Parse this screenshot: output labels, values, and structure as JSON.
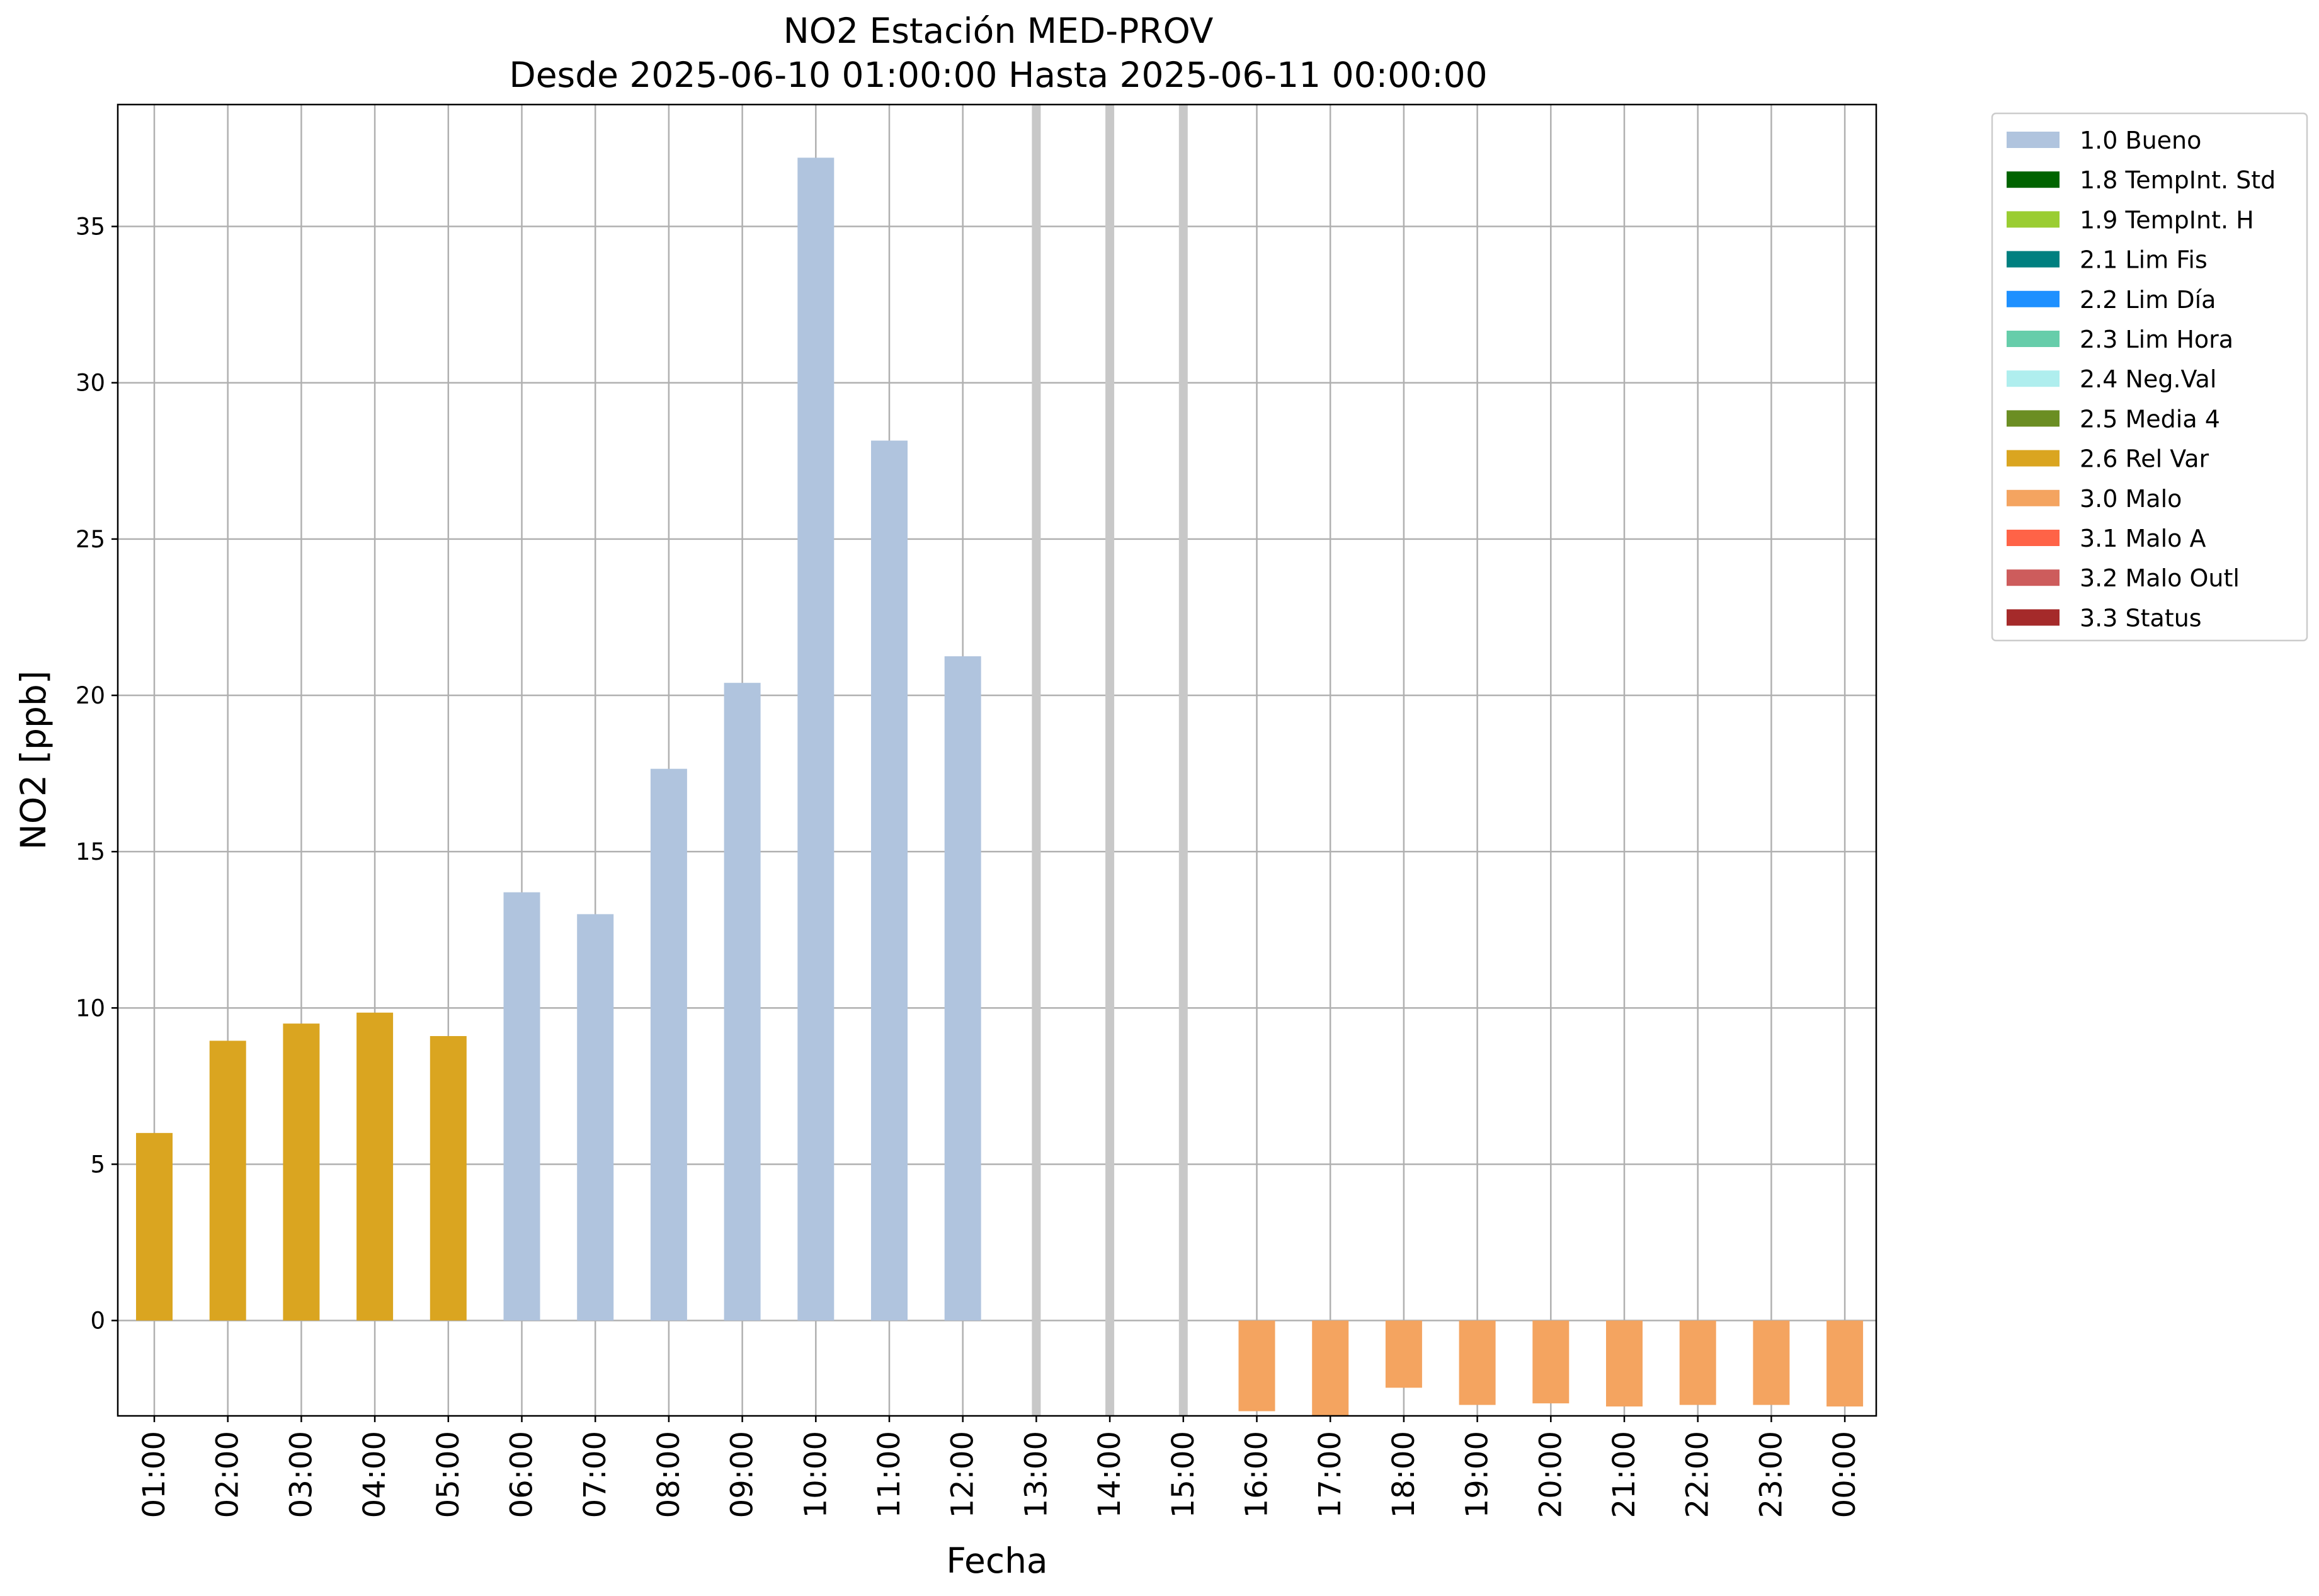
{
  "chart_data": {
    "type": "bar",
    "title": "NO2 Estación MED-PROV",
    "subtitle": "Desde 2025-06-10 01:00:00 Hasta 2025-06-11 00:00:00",
    "xlabel": "Fecha",
    "ylabel": "NO2 [ppb]",
    "ylim": [
      -3.05,
      38.9
    ],
    "yticks": [
      0,
      5,
      10,
      15,
      20,
      25,
      30,
      35
    ],
    "grid": true,
    "legend_position": "outside top-right",
    "categories": [
      "01:00",
      "02:00",
      "03:00",
      "04:00",
      "05:00",
      "06:00",
      "07:00",
      "08:00",
      "09:00",
      "10:00",
      "11:00",
      "12:00",
      "13:00",
      "14:00",
      "15:00",
      "16:00",
      "17:00",
      "18:00",
      "19:00",
      "20:00",
      "21:00",
      "22:00",
      "23:00",
      "00:00"
    ],
    "values": [
      6.0,
      8.95,
      9.5,
      9.85,
      9.1,
      13.7,
      13.0,
      17.65,
      20.4,
      37.2,
      28.15,
      21.25,
      null,
      null,
      null,
      -2.9,
      -3.05,
      -2.15,
      -2.7,
      -2.65,
      -2.75,
      -2.7,
      -2.7,
      -2.75
    ],
    "flags": [
      "2.6 Rel Var",
      "2.6 Rel Var",
      "2.6 Rel Var",
      "2.6 Rel Var",
      "2.6 Rel Var",
      "1.0 Bueno",
      "1.0 Bueno",
      "1.0 Bueno",
      "1.0 Bueno",
      "1.0 Bueno",
      "1.0 Bueno",
      "1.0 Bueno",
      null,
      null,
      null,
      "3.0 Malo",
      "3.0 Malo",
      "3.0 Malo",
      "3.0 Malo",
      "3.0 Malo",
      "3.0 Malo",
      "3.0 Malo",
      "3.0 Malo",
      "3.0 Malo"
    ],
    "missing_markers": [
      "13:00",
      "14:00",
      "15:00"
    ],
    "legend": [
      {
        "label": "1.0 Bueno",
        "color": "#b0c4de"
      },
      {
        "label": "1.8 TempInt. Std",
        "color": "#006400"
      },
      {
        "label": "1.9 TempInt. H",
        "color": "#9acd32"
      },
      {
        "label": "2.1 Lim Fis",
        "color": "#008080"
      },
      {
        "label": "2.2 Lim Día",
        "color": "#1e90ff"
      },
      {
        "label": "2.3 Lim Hora",
        "color": "#66cdaa"
      },
      {
        "label": "2.4 Neg.Val",
        "color": "#afeeee"
      },
      {
        "label": "2.5 Media 4",
        "color": "#6b8e23"
      },
      {
        "label": "2.6 Rel Var",
        "color": "#daa520"
      },
      {
        "label": "3.0 Malo",
        "color": "#f4a460"
      },
      {
        "label": "3.1 Malo A",
        "color": "#ff6347"
      },
      {
        "label": "3.2 Malo Outl",
        "color": "#cd5c5c"
      },
      {
        "label": "3.3 Status",
        "color": "#a52a2a"
      }
    ],
    "colors": {
      "grid": "#b0b0b0",
      "missing_marker": "#c8c8c8",
      "axes": "#000000"
    }
  }
}
